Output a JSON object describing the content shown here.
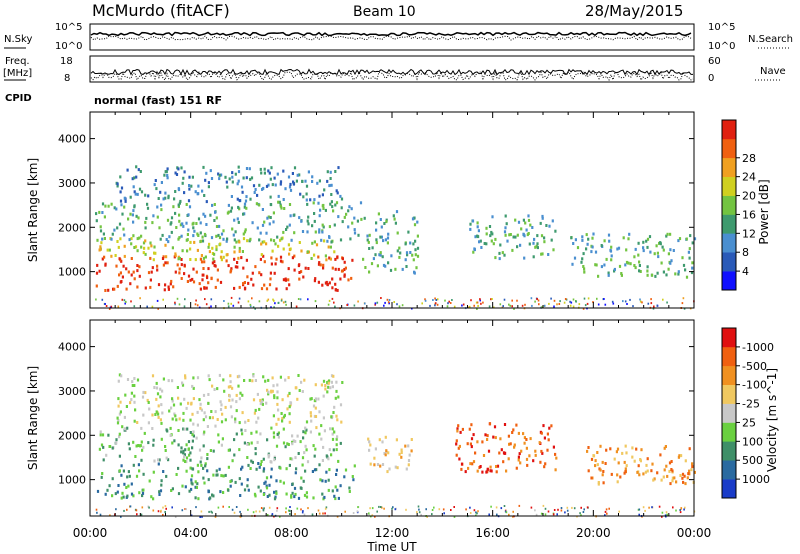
{
  "header": {
    "title": "McMurdo (fitACF)",
    "beam": "Beam 10",
    "date": "28/May/2015"
  },
  "panels": {
    "nsky": {
      "label": "N.Sky",
      "ticks": [
        "10^5",
        "10^0"
      ],
      "right_label": "N.Search",
      "right_ticks": [
        "10^5",
        "10^0"
      ]
    },
    "freq": {
      "label_line1": "Freq.",
      "label_line2": "[MHz]",
      "ticks": [
        "18",
        "8"
      ],
      "right_label": "Nave",
      "right_ticks": [
        "60",
        "0"
      ]
    },
    "cpid": {
      "label": "CPID",
      "text": "normal (fast) 151 RF"
    }
  },
  "chart_data": [
    {
      "type": "heatmap",
      "name": "power",
      "ylabel": "Slant Range [km]",
      "yticks": [
        1000,
        2000,
        3000,
        4000
      ],
      "ylim": [
        180,
        4600
      ],
      "xlim": [
        0,
        24
      ],
      "colorbar_label": "Power [dB]",
      "colorbar_ticks": [
        "4",
        "8",
        "12",
        "16",
        "20",
        "24",
        "28"
      ],
      "colorbar_colors": [
        "#1010ff",
        "#2a5ab8",
        "#4a8fd0",
        "#3e9a6e",
        "#73c441",
        "#d0d020",
        "#f0a020",
        "#f06010",
        "#e02010"
      ],
      "regions": [
        {
          "x0": 0.2,
          "x1": 10.5,
          "y0": 600,
          "y1": 1400,
          "level": 8
        },
        {
          "x0": 0.3,
          "x1": 9.8,
          "y0": 1300,
          "y1": 1800,
          "level": 5
        },
        {
          "x0": 0.2,
          "x1": 10.8,
          "y0": 1700,
          "y1": 2600,
          "level": 3
        },
        {
          "x0": 1.0,
          "x1": 10.0,
          "y0": 2600,
          "y1": 3400,
          "level": 2
        },
        {
          "x0": 10.8,
          "x1": 13.0,
          "y0": 1000,
          "y1": 2400,
          "level": 3
        },
        {
          "x0": 15.0,
          "x1": 18.5,
          "y0": 1300,
          "y1": 2300,
          "level": 3
        },
        {
          "x0": 19.0,
          "x1": 24.0,
          "y0": 900,
          "y1": 1900,
          "level": 3
        }
      ]
    },
    {
      "type": "heatmap",
      "name": "velocity",
      "ylabel": "Slant Range [km]",
      "yticks": [
        1000,
        2000,
        3000,
        4000
      ],
      "ylim": [
        180,
        4600
      ],
      "xlim": [
        0,
        24
      ],
      "xlabel": "Time UT",
      "xticks": [
        "00:00",
        "04:00",
        "08:00",
        "12:00",
        "16:00",
        "20:00",
        "00:00"
      ],
      "colorbar_label": "Velocity [m s^-1]",
      "colorbar_ticks": [
        "1000",
        "500",
        "100",
        "25",
        "-25",
        "-100",
        "-500",
        "-1000"
      ],
      "colorbar_colors": [
        "#1a3cc8",
        "#2a6aa0",
        "#3f8f68",
        "#6ad040",
        "#c8c8c8",
        "#f0c860",
        "#f09020",
        "#f06010",
        "#e01010"
      ],
      "regions": [
        {
          "x0": 0.2,
          "x1": 10.5,
          "y0": 600,
          "y1": 1400,
          "level": 2
        },
        {
          "x0": 0.3,
          "x1": 10.0,
          "y0": 1400,
          "y1": 2200,
          "level": 3
        },
        {
          "x0": 1.0,
          "x1": 10.0,
          "y0": 2200,
          "y1": 3400,
          "level": 4
        },
        {
          "x0": 11.0,
          "x1": 12.8,
          "y0": 1200,
          "y1": 2000,
          "level": 5
        },
        {
          "x0": 14.5,
          "x1": 18.5,
          "y0": 1200,
          "y1": 2300,
          "level": 7
        },
        {
          "x0": 19.5,
          "x1": 24.0,
          "y0": 900,
          "y1": 1800,
          "level": 6
        }
      ]
    }
  ]
}
